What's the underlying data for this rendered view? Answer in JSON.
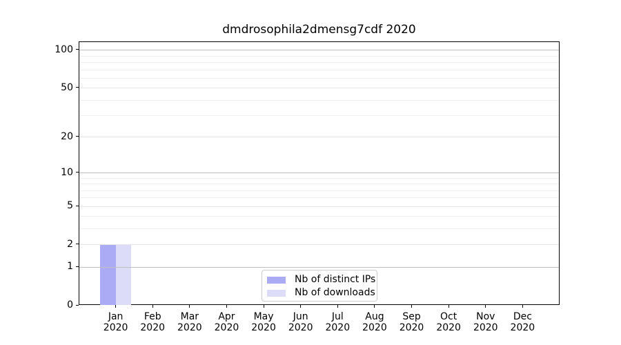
{
  "chart_data": {
    "type": "bar",
    "title": "dmdrosophila2dmensg7cdf 2020",
    "categories": [
      "Jan 2020",
      "Feb 2020",
      "Mar 2020",
      "Apr 2020",
      "May 2020",
      "Jun 2020",
      "Jul 2020",
      "Aug 2020",
      "Sep 2020",
      "Oct 2020",
      "Nov 2020",
      "Dec 2020"
    ],
    "series": [
      {
        "name": "Nb of distinct IPs",
        "color": "#aaaaf5",
        "values": [
          2,
          0,
          0,
          0,
          0,
          0,
          0,
          0,
          0,
          0,
          0,
          0
        ]
      },
      {
        "name": "Nb of downloads",
        "color": "#dcdcf8",
        "values": [
          2,
          0,
          0,
          0,
          0,
          0,
          0,
          0,
          0,
          0,
          0,
          0
        ]
      }
    ],
    "xlabel": "",
    "ylabel": "",
    "yscale": "log1p",
    "ylim": [
      0,
      116
    ],
    "yticks": [
      0,
      1,
      2,
      5,
      10,
      20,
      50,
      100
    ],
    "y_gridlines_major": [
      1,
      10,
      100
    ],
    "y_gridlines_mid": [
      2,
      5,
      20,
      50
    ],
    "y_gridlines_minor": [
      3,
      4,
      6,
      7,
      8,
      9,
      30,
      40,
      60,
      70,
      80,
      90
    ],
    "grid": "horizontal",
    "legend": {
      "position": "lower center",
      "entries": [
        "Nb of distinct IPs",
        "Nb of downloads"
      ]
    }
  },
  "style_colors": {
    "background": "#ffffff",
    "spine": "#000000",
    "text": "#000000",
    "grid_major": "#bfbfbf",
    "grid_mid": "#e4e4e4",
    "grid_minor": "#f0f0f0",
    "legend_border": "#cccccc",
    "bar_distinct_ips": "#aaaaf5",
    "bar_downloads": "#dcdcf8"
  }
}
